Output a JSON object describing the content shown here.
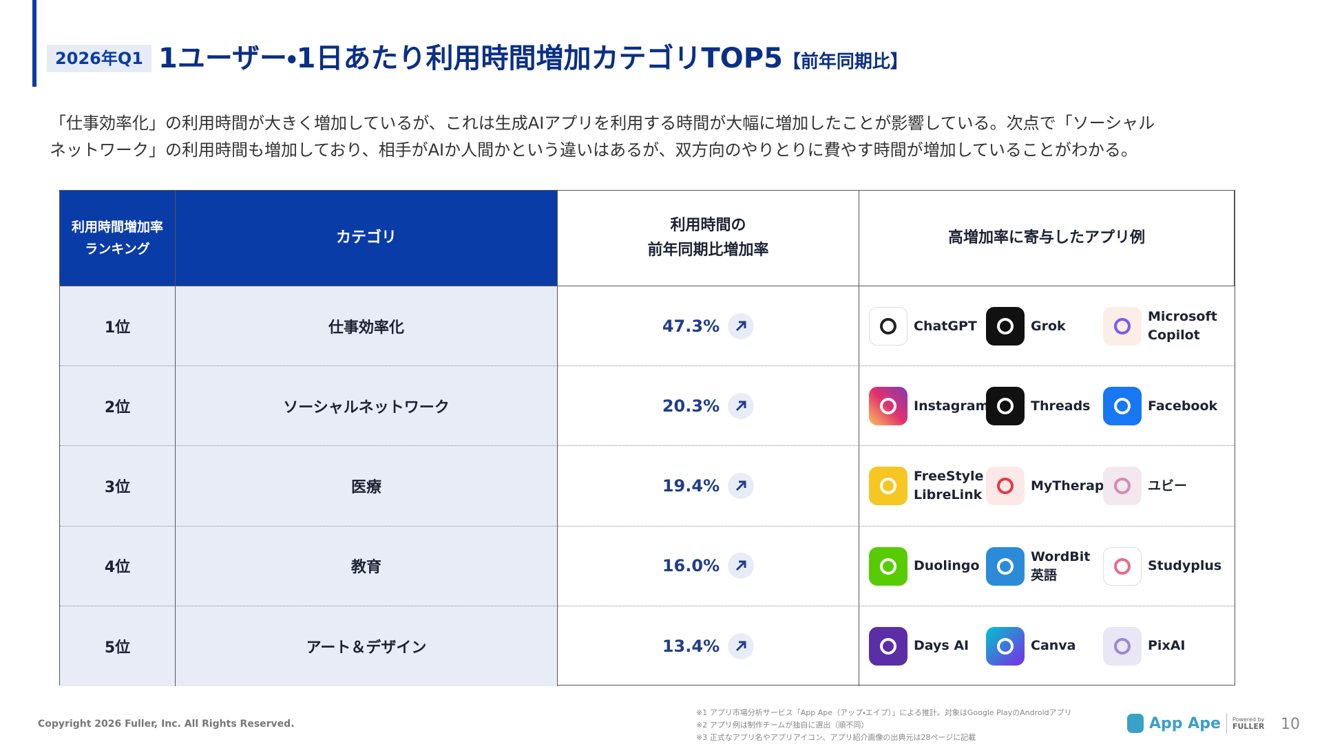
{
  "header": {
    "badge": "2026年Q1",
    "title": "1ユーザー・1日あたり利用時間増加カテゴリTOP5",
    "title_suffix": "【前年同期比】"
  },
  "description": [
    "「仕事効率化」の利用時間が大きく増加しているが、これは生成AIアプリを利用する時間が大幅に増加したことが影響している。次点で「ソーシャル",
    "ネットワーク」の利用時間も増加しており、相手がAIか人間かという違いはあるが、双方向のやりとりに費やす時間が増加していることがわかる。"
  ],
  "table": {
    "headers": [
      [
        "利用時間増加率",
        "ランキング"
      ],
      [
        "カテゴリ"
      ],
      [
        "利用時間の",
        "前年同期比増加率"
      ],
      [
        "高増加率に寄与したアプリ例"
      ]
    ],
    "rows": [
      {
        "rank": "1位",
        "category": "仕事効率化",
        "rate": "47.3%",
        "apps": [
          [
            "ChatGPT"
          ],
          [
            "Grok"
          ],
          [
            "Microsoft",
            "Copilot"
          ]
        ]
      },
      {
        "rank": "2位",
        "category": "ソーシャルネットワーク",
        "rate": "20.3%",
        "apps": [
          [
            "Instagram"
          ],
          [
            "Threads"
          ],
          [
            "Facebook"
          ]
        ]
      },
      {
        "rank": "3位",
        "category": "医療",
        "rate": "19.4%",
        "apps": [
          [
            "FreeStyle",
            "LibreLink"
          ],
          [
            "MyTherapy"
          ],
          [
            "ユビー"
          ]
        ]
      },
      {
        "rank": "4位",
        "category": "教育",
        "rate": "16.0%",
        "apps": [
          [
            "Duolingo"
          ],
          [
            "WordBit",
            "英語"
          ],
          [
            "Studyplus"
          ]
        ]
      },
      {
        "rank": "5位",
        "category": "アート＆デザイン",
        "rate": "13.4%",
        "apps": [
          [
            "Days AI"
          ],
          [
            "Canva"
          ],
          [
            "PixAI"
          ]
        ]
      }
    ]
  },
  "footer": {
    "copyright": "Copyright 2026 Fuller, Inc. All Rights Reserved.",
    "notes": [
      "※1 アプリ市場分析サービス「App Ape（アップ・エイプ）」による推計。対象はGoogle PlayのAndroidアプリ",
      "※2 アプリ例は制作チームが独自に選出（順不同）",
      "※3 正式なアプリ名やアプリアイコン、アプリ紹介画像の出典元は28ページに記載"
    ],
    "logo": "App Ape",
    "powered_by": "Powered by",
    "fuller": "FULLER",
    "page_number": "10"
  }
}
